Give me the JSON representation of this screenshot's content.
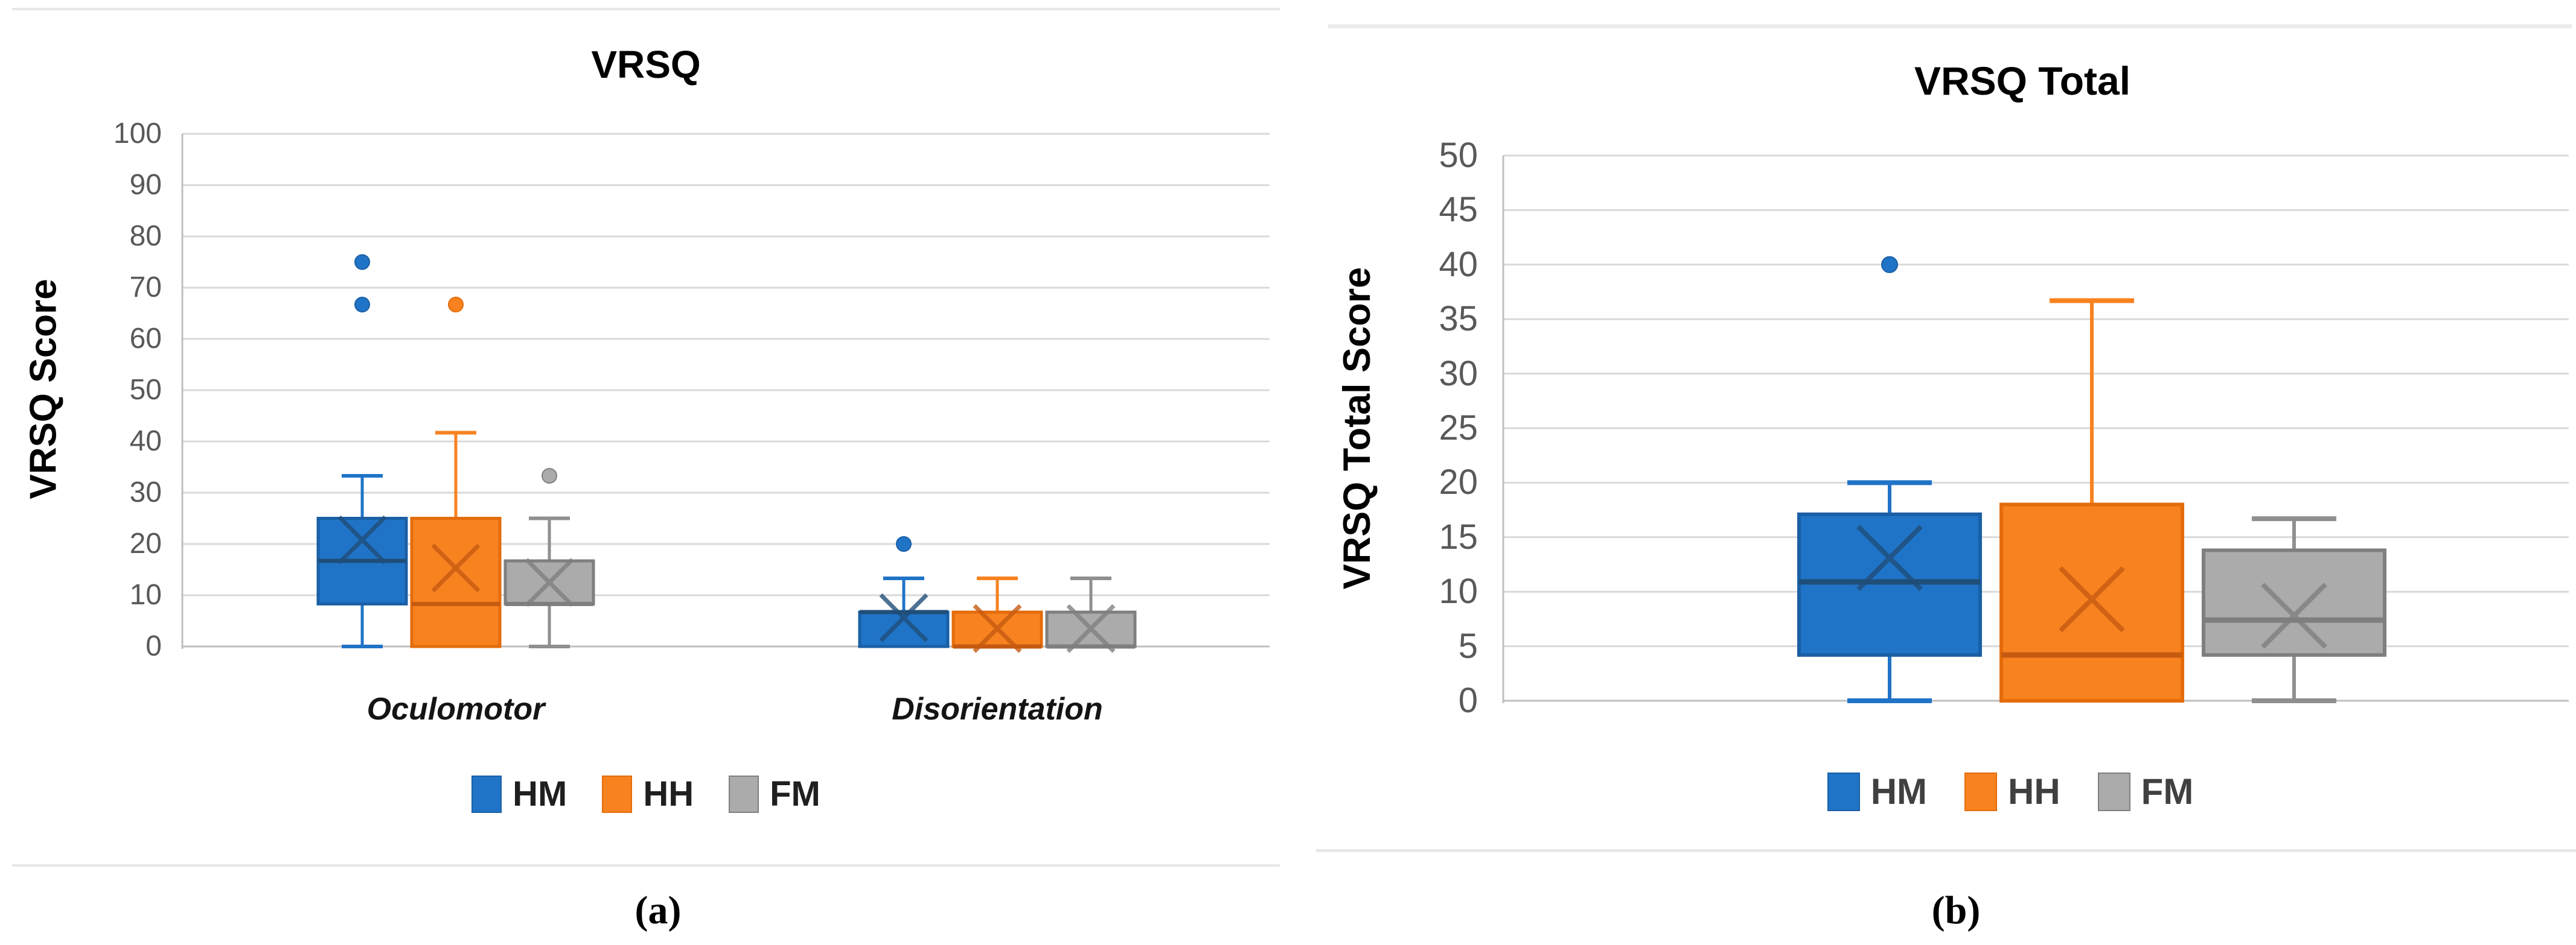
{
  "figure": {
    "captions": {
      "a": "(a)",
      "b": "(b)"
    }
  },
  "colors": {
    "gridline": "#d9d9d9",
    "axis_line": "#bfbfbf",
    "tick_text": "#595959",
    "title_text": "#000000",
    "legend_text_a": "#1f1f1f",
    "legend_text_b": "#404040",
    "separator_rule": "#e7e7e7",
    "hm_blue": "#2074c7",
    "hh_orange": "#f8821f",
    "fm_gray": "#ababab"
  },
  "chart_data": [
    {
      "id": "a",
      "type": "boxplot",
      "title": "VRSQ",
      "ylabel": "VRSQ Score",
      "ylim": [
        0,
        100
      ],
      "yticks": [
        0,
        10,
        20,
        30,
        40,
        50,
        60,
        70,
        80,
        90,
        100
      ],
      "grid": true,
      "legend_position": "bottom",
      "categories": [
        "Oculomotor",
        "Disorientation"
      ],
      "series": [
        {
          "name": "HM",
          "fill": "#2074c7",
          "border": "#1a5fa5",
          "accent": "#1f4e79",
          "whisker": "#2074c7",
          "boxes": [
            {
              "category": "Oculomotor",
              "min": 0,
              "q1": 8.3,
              "median": 16.7,
              "q3": 25,
              "max": 33.3,
              "mean": 20.8,
              "outliers": [
                66.7,
                75
              ]
            },
            {
              "category": "Disorientation",
              "min": 0,
              "q1": 0,
              "median": 6.7,
              "q3": 6.7,
              "max": 13.3,
              "mean": 5.6,
              "outliers": [
                20
              ]
            }
          ]
        },
        {
          "name": "HH",
          "fill": "#f8821f",
          "border": "#e46c0a",
          "accent": "#c55a11",
          "whisker": "#f8821f",
          "boxes": [
            {
              "category": "Oculomotor",
              "min": 0,
              "q1": 0,
              "median": 8.3,
              "q3": 25,
              "max": 41.7,
              "mean": 15.3,
              "outliers": [
                66.7
              ]
            },
            {
              "category": "Disorientation",
              "min": 0,
              "q1": 0,
              "median": 0,
              "q3": 6.7,
              "max": 13.3,
              "mean": 3.5,
              "outliers": []
            }
          ]
        },
        {
          "name": "FM",
          "fill": "#ababab",
          "border": "#7f7f7f",
          "accent": "#7f7f7f",
          "whisker": "#8f8f8f",
          "boxes": [
            {
              "category": "Oculomotor",
              "min": 0,
              "q1": 8.3,
              "median": 8.3,
              "q3": 16.7,
              "max": 25,
              "mean": 12.5,
              "outliers": [
                33.3
              ]
            },
            {
              "category": "Disorientation",
              "min": 0,
              "q1": 0,
              "median": 0,
              "q3": 6.7,
              "max": 13.3,
              "mean": 3.5,
              "outliers": []
            }
          ]
        }
      ]
    },
    {
      "id": "b",
      "type": "boxplot",
      "title": "VRSQ Total",
      "ylabel": "VRSQ Total Score",
      "ylim": [
        0,
        50
      ],
      "yticks": [
        0,
        5,
        10,
        15,
        20,
        25,
        30,
        35,
        40,
        45,
        50
      ],
      "grid": true,
      "legend_position": "bottom",
      "categories": [
        ""
      ],
      "series": [
        {
          "name": "HM",
          "fill": "#2074c7",
          "border": "#1a5fa5",
          "accent": "#1f4e79",
          "whisker": "#2074c7",
          "boxes": [
            {
              "category": "",
              "min": 0,
              "q1": 4.2,
              "median": 10.9,
              "q3": 17.1,
              "max": 20,
              "mean": 13.1,
              "outliers": [
                40
              ]
            }
          ]
        },
        {
          "name": "HH",
          "fill": "#f8821f",
          "border": "#e46c0a",
          "accent": "#c55a11",
          "whisker": "#f8821f",
          "boxes": [
            {
              "category": "",
              "min": 0,
              "q1": 0,
              "median": 4.2,
              "q3": 18,
              "max": 36.7,
              "mean": 9.3,
              "outliers": []
            }
          ]
        },
        {
          "name": "FM",
          "fill": "#ababab",
          "border": "#7f7f7f",
          "accent": "#7f7f7f",
          "whisker": "#8f8f8f",
          "boxes": [
            {
              "category": "",
              "min": 0,
              "q1": 4.2,
              "median": 7.4,
              "q3": 13.8,
              "max": 16.7,
              "mean": 7.8,
              "outliers": []
            }
          ]
        }
      ]
    }
  ]
}
